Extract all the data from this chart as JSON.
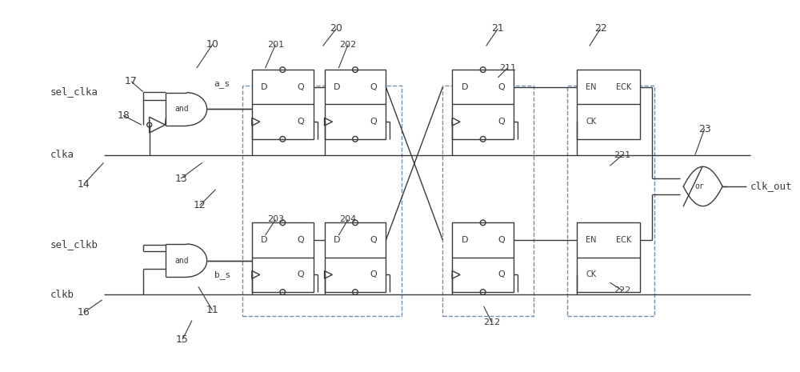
{
  "bg_color": "#ffffff",
  "line_color": "#3a3a3a",
  "text_color": "#3a3a3a",
  "dashed_color": "#7090b0",
  "figsize": [
    10.0,
    4.65
  ],
  "dpi": 100,
  "xlim": [
    0,
    10
  ],
  "ylim": [
    0,
    4.65
  ]
}
